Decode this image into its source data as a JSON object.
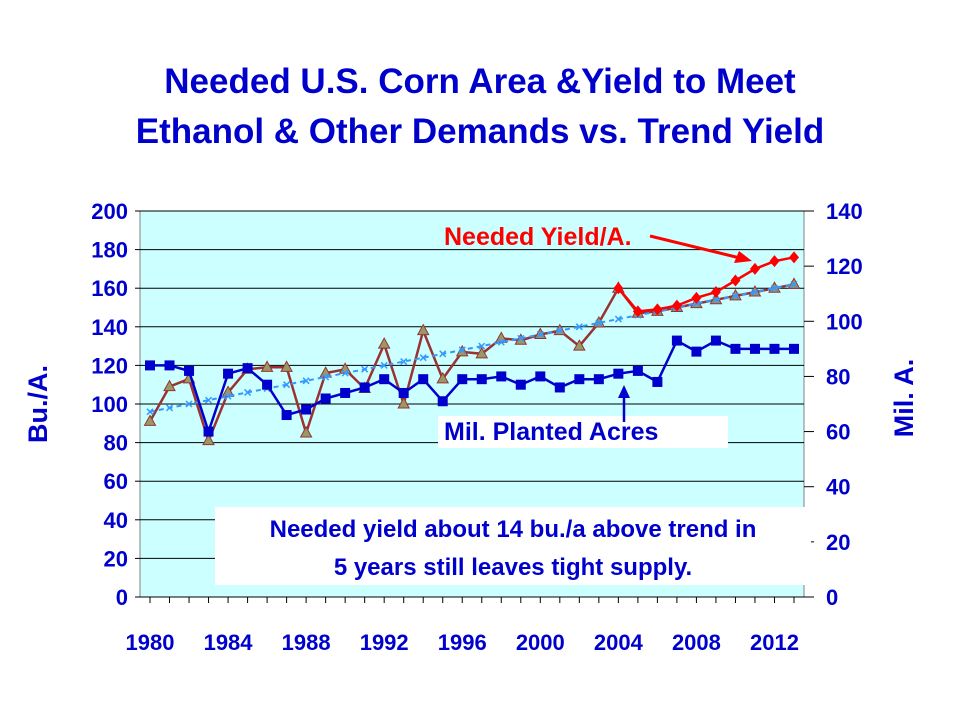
{
  "chart_data": {
    "type": "line",
    "title_lines": [
      "Needed U.S. Corn Area &Yield to Meet",
      "Ethanol & Other Demands vs. Trend Yield"
    ],
    "x_tick_labels": [
      "1980",
      "1984",
      "1988",
      "1992",
      "1996",
      "2000",
      "2004",
      "2008",
      "2012"
    ],
    "xlim": [
      1980,
      2013
    ],
    "y_left": {
      "label": "Bu./A.",
      "range": [
        0,
        200
      ],
      "ticks": [
        0,
        20,
        40,
        60,
        80,
        100,
        120,
        140,
        160,
        180,
        200
      ]
    },
    "y_right": {
      "label": "Mil. A.",
      "range": [
        0,
        140
      ],
      "ticks": [
        0,
        20,
        40,
        60,
        80,
        100,
        120,
        140
      ]
    },
    "grid": true,
    "colors": {
      "plot_bg": "#ccffff",
      "text_blue": "#0000cc",
      "needed_yield": "#ff0000",
      "actual_yield": "#993333",
      "trend": "#3399ff",
      "acres": "#0000cc"
    },
    "series": [
      {
        "name": "Needed Yield/A.",
        "axis": "left",
        "color": "#ff0000",
        "marker": "diamond",
        "x": [
          2004,
          2005,
          2006,
          2007,
          2008,
          2009,
          2010,
          2011,
          2012,
          2013
        ],
        "values": [
          160,
          148,
          149,
          151,
          155,
          158,
          164,
          170,
          174,
          176
        ]
      },
      {
        "name": "",
        "axis": "left",
        "color": "#993333",
        "marker": "triangle",
        "x": [
          1980,
          1981,
          1982,
          1983,
          1984,
          1985,
          1986,
          1987,
          1988,
          1989,
          1990,
          1991,
          1992,
          1993,
          1994,
          1995,
          1996,
          1997,
          1998,
          1999,
          2000,
          2001,
          2002,
          2003,
          2004,
          2005,
          2006,
          2007,
          2008,
          2009,
          2010,
          2011,
          2012,
          2013
        ],
        "values": [
          91,
          109,
          113,
          81,
          106,
          118,
          119,
          119,
          85,
          116,
          118,
          108,
          131,
          100,
          138,
          113,
          127,
          126,
          134,
          133,
          136,
          138,
          130,
          142,
          160,
          147,
          148,
          150,
          152,
          154,
          156,
          158,
          160,
          162
        ]
      },
      {
        "name": "",
        "axis": "left",
        "color": "#3399ff",
        "marker": "x",
        "x": [
          1980,
          1981,
          1982,
          1983,
          1984,
          1985,
          1986,
          1987,
          1988,
          1989,
          1990,
          1991,
          1992,
          1993,
          1994,
          1995,
          1996,
          1997,
          1998,
          1999,
          2000,
          2001,
          2002,
          2003,
          2004,
          2005,
          2006,
          2007,
          2008,
          2009,
          2010,
          2011,
          2012,
          2013
        ],
        "values": [
          96,
          98,
          100,
          102,
          104,
          106,
          108,
          110,
          112,
          114,
          116,
          118,
          120,
          122,
          124,
          126,
          128,
          130,
          132,
          134,
          136,
          138,
          140,
          142,
          144,
          146,
          148,
          150,
          152,
          154,
          156,
          158,
          160,
          162
        ]
      },
      {
        "name": "Mil. Planted Acres",
        "axis": "right",
        "color": "#0000cc",
        "marker": "square",
        "x": [
          1980,
          1981,
          1982,
          1983,
          1984,
          1985,
          1986,
          1987,
          1988,
          1989,
          1990,
          1991,
          1992,
          1993,
          1994,
          1995,
          1996,
          1997,
          1998,
          1999,
          2000,
          2001,
          2002,
          2003,
          2004,
          2005,
          2006,
          2007,
          2008,
          2009,
          2010,
          2011,
          2012,
          2013
        ],
        "values": [
          84,
          84,
          82,
          60,
          81,
          83,
          77,
          66,
          68,
          72,
          74,
          76,
          79,
          74,
          79,
          71,
          79,
          79,
          80,
          77,
          80,
          76,
          79,
          79,
          81,
          82,
          78,
          93,
          89,
          93,
          90,
          90,
          90,
          90
        ]
      }
    ],
    "annotations": {
      "needed_yield_label": "Needed Yield/A.",
      "acres_label": "Mil. Planted Acres",
      "callout_line1": "Needed yield about 14 bu./a above trend in",
      "callout_line2": "5 years still leaves tight supply."
    }
  }
}
